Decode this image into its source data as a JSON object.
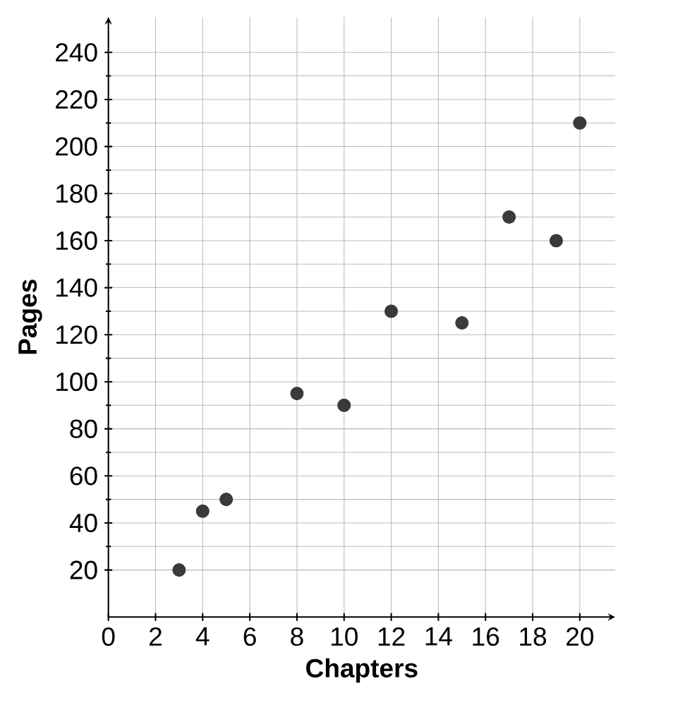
{
  "chart_data": {
    "type": "scatter",
    "xlabel": "Chapters",
    "ylabel": "Pages",
    "x": [
      3,
      4,
      5,
      8,
      10,
      12,
      15,
      17,
      19,
      20
    ],
    "values": [
      20,
      45,
      50,
      95,
      90,
      130,
      125,
      170,
      160,
      210
    ],
    "color": "#3a3a3a",
    "marker": "circle",
    "grid": true,
    "xlim": [
      0,
      21.5
    ],
    "ylim": [
      0,
      255
    ],
    "xticks": [
      0,
      2,
      4,
      6,
      8,
      10,
      12,
      14,
      16,
      18,
      20
    ],
    "yticks": [
      20,
      40,
      60,
      80,
      100,
      120,
      140,
      160,
      180,
      200,
      220,
      240
    ]
  }
}
